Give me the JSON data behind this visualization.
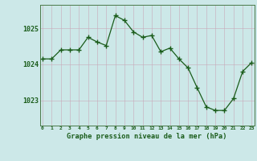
{
  "x": [
    0,
    1,
    2,
    3,
    4,
    5,
    6,
    7,
    8,
    9,
    10,
    11,
    12,
    13,
    14,
    15,
    16,
    17,
    18,
    19,
    20,
    21,
    22,
    23
  ],
  "y": [
    1024.15,
    1024.15,
    1024.4,
    1024.4,
    1024.4,
    1024.75,
    1024.62,
    1024.52,
    1025.35,
    1025.22,
    1024.9,
    1024.75,
    1024.8,
    1024.35,
    1024.45,
    1024.15,
    1023.9,
    1023.35,
    1022.82,
    1022.72,
    1022.72,
    1023.05,
    1023.8,
    1024.05
  ],
  "line_color": "#1a5c1a",
  "marker_color": "#1a5c1a",
  "bg_color": "#cce8e8",
  "grid_major_color": "#b8d8d8",
  "grid_minor_color": "#d0e8e8",
  "xlabel": "Graphe pression niveau de la mer (hPa)",
  "xlabel_color": "#1a5c1a",
  "tick_color": "#1a5c1a",
  "yticks": [
    1023,
    1024,
    1025
  ],
  "xticks": [
    0,
    1,
    2,
    3,
    4,
    5,
    6,
    7,
    8,
    9,
    10,
    11,
    12,
    13,
    14,
    15,
    16,
    17,
    18,
    19,
    20,
    21,
    22,
    23
  ],
  "ylim": [
    1022.3,
    1025.65
  ],
  "xlim": [
    -0.3,
    23.3
  ],
  "spine_color": "#4a7a4a"
}
